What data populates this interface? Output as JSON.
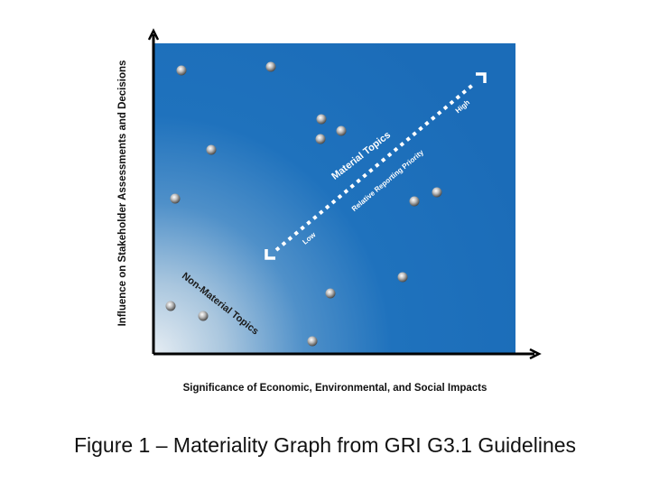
{
  "figure": {
    "caption": "Figure 1 – Materiality Graph from GRI G3.1 Guidelines",
    "x_axis_label": "Significance of Economic, Environmental, and Social Impacts",
    "y_axis_label": "Influence on Stakeholder Assessments and Decisions"
  },
  "zones": {
    "material": "Material Topics",
    "non_material": "Non-Material Topics"
  },
  "priority_arrow": {
    "label": "Relative Reporting Priority",
    "low": "Low",
    "high": "High"
  },
  "colors": {
    "panel_deep": "#1a6fbf",
    "panel_light": "#dce7ef",
    "axis": "#000000",
    "arrow": "#ffffff"
  }
}
